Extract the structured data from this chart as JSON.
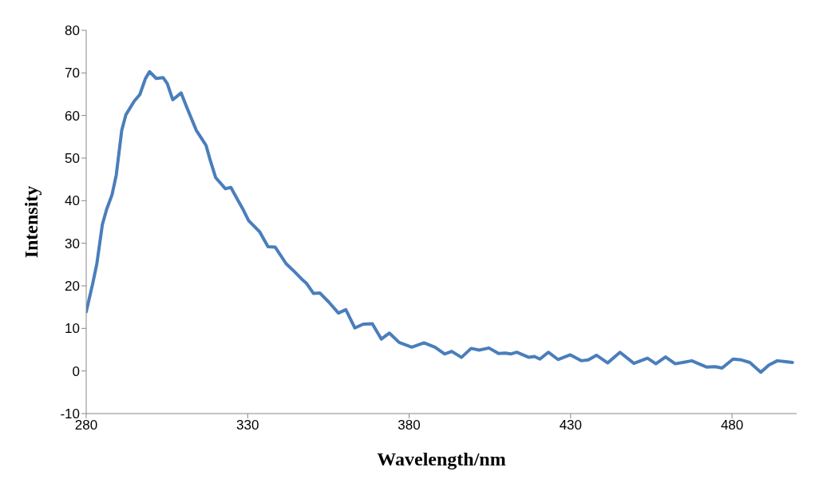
{
  "chart_data": {
    "type": "line",
    "xlabel": "Wavelength/nm",
    "ylabel": "Intensity",
    "xlim": [
      280,
      500
    ],
    "xticks": [
      280,
      330,
      380,
      430,
      480
    ],
    "ylim": [
      -10,
      80
    ],
    "yticks": [
      -10,
      0,
      10,
      20,
      30,
      40,
      50,
      60,
      70,
      80
    ],
    "grid": false,
    "legend": false,
    "marker": "none",
    "line_style": "solid",
    "series": [
      {
        "color": "#4a7ebb",
        "x": [
          280,
          282,
          283.3,
          285,
          286.3,
          288,
          289.3,
          291,
          292.3,
          294.9,
          296.6,
          298.3,
          299.6,
          301.7,
          303.8,
          305.1,
          306.8,
          309.4,
          311.1,
          314.1,
          317.1,
          318.4,
          320.1,
          323.1,
          324.8,
          326.9,
          328.6,
          330.3,
          333.7,
          336.3,
          338.5,
          341.9,
          344.4,
          347,
          348.3,
          350.4,
          352.4,
          355.1,
          358.1,
          360.4,
          363.2,
          365.8,
          368.6,
          371.4,
          373.9,
          376.9,
          380.8,
          384.6,
          388,
          391,
          393.2,
          396.2,
          399.2,
          401.7,
          404.7,
          407.7,
          409.8,
          411.5,
          413.3,
          417.1,
          418.8,
          420.5,
          423.1,
          426.1,
          429.9,
          433.3,
          435.5,
          438,
          441.5,
          445.3,
          449.6,
          453.8,
          456.4,
          459.4,
          462.4,
          465.4,
          467.5,
          472.2,
          474.8,
          476.9,
          480.3,
          482.9,
          485.5,
          488.9,
          491.4,
          494,
          496.6,
          498.7
        ],
        "values": [
          13.9,
          20.5,
          25.2,
          34.4,
          37.9,
          41.4,
          46,
          56.5,
          60.2,
          63.4,
          64.9,
          68.6,
          70.3,
          68.7,
          68.9,
          67.5,
          63.7,
          65.3,
          62,
          56.5,
          53,
          49.5,
          45.4,
          42.8,
          43.1,
          40.2,
          37.9,
          35.3,
          32.7,
          29.2,
          29.1,
          25.2,
          23.4,
          21.4,
          20.5,
          18.2,
          18.3,
          16.2,
          13.6,
          14.4,
          10.1,
          11,
          11.1,
          7.5,
          8.9,
          6.7,
          5.6,
          6.6,
          5.6,
          4,
          4.6,
          3.2,
          5.3,
          4.9,
          5.4,
          4.1,
          4.2,
          4,
          4.4,
          3.2,
          3.4,
          2.8,
          4.4,
          2.7,
          3.8,
          2.4,
          2.6,
          3.7,
          1.9,
          4.4,
          1.8,
          3,
          1.7,
          3.3,
          1.7,
          2.1,
          2.4,
          0.9,
          1,
          0.7,
          2.8,
          2.6,
          2,
          -0.3,
          1.4,
          2.4,
          2.2,
          2
        ]
      }
    ]
  }
}
